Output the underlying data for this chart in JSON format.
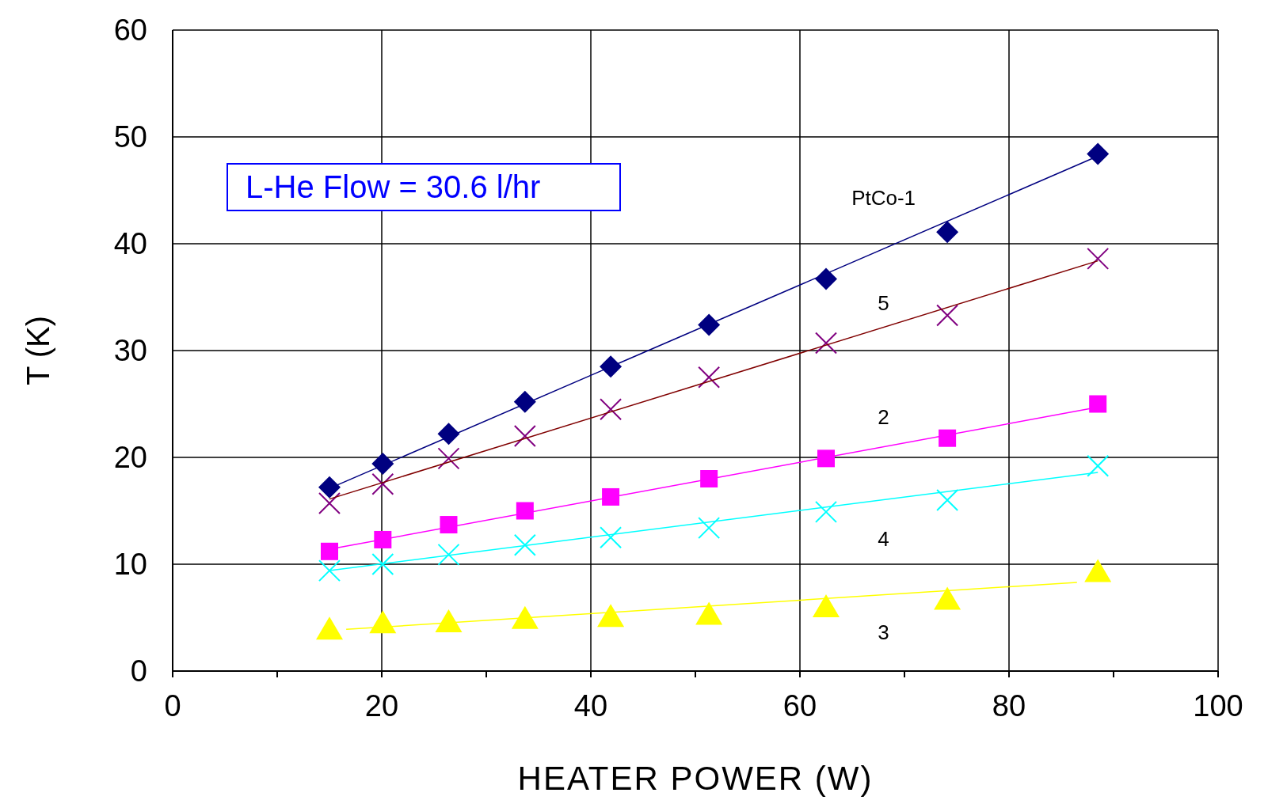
{
  "chart_data": {
    "type": "scatter",
    "xlabel": "HEATER POWER (W)",
    "ylabel": "T (K)",
    "annotations": [
      "L-He Flow = 30.6 l/hr"
    ],
    "x": [
      15.0,
      20.1,
      26.4,
      33.7,
      41.9,
      51.3,
      62.5,
      74.1,
      88.5
    ],
    "series": [
      {
        "name": "PtCo-1",
        "color": "#000080",
        "marker": "diamond",
        "values": [
          17.2,
          19.4,
          22.2,
          25.2,
          28.5,
          32.4,
          36.7,
          41.1,
          48.4
        ]
      },
      {
        "name": "5",
        "color": "#800080",
        "marker": "cross",
        "values": [
          15.7,
          17.5,
          19.9,
          22.0,
          24.5,
          27.5,
          30.7,
          33.3,
          38.6
        ]
      },
      {
        "name": "2",
        "color": "#ff00ff",
        "marker": "square",
        "values": [
          11.2,
          12.3,
          13.7,
          15.0,
          16.3,
          18.0,
          19.9,
          21.8,
          25.0
        ]
      },
      {
        "name": "4",
        "color": "#00ffff",
        "marker": "cross",
        "values": [
          9.4,
          10.0,
          10.9,
          11.8,
          12.5,
          13.4,
          14.9,
          16.0,
          19.2
        ]
      },
      {
        "name": "3",
        "color": "#ffff00",
        "marker": "triangle",
        "values": [
          3.9,
          4.5,
          4.6,
          4.9,
          5.1,
          5.3,
          6.0,
          6.7,
          9.3
        ]
      },
      {
        "type": "line",
        "color": "#000080",
        "x": [
          15.0,
          88.5
        ],
        "values": [
          17.1,
          48.2
        ]
      },
      {
        "type": "line",
        "color": "#800000",
        "x": [
          15.0,
          88.5
        ],
        "values": [
          16.1,
          38.4
        ]
      },
      {
        "type": "line",
        "color": "#ff00ff",
        "x": [
          15.0,
          88.5
        ],
        "values": [
          11.4,
          24.7
        ]
      },
      {
        "type": "line",
        "color": "#00ffff",
        "x": [
          15.0,
          88.5
        ],
        "values": [
          9.4,
          18.6
        ]
      },
      {
        "type": "line",
        "color": "#ffff00",
        "x": [
          16.6,
          86.5
        ],
        "values": [
          3.9,
          8.3
        ]
      }
    ],
    "xlim": [
      0,
      100
    ],
    "ylim": [
      0,
      60
    ],
    "xticks": [
      0,
      {
        "value": 10,
        "label": null
      },
      20,
      {
        "value": 30,
        "label": null
      },
      40,
      {
        "value": 50,
        "label": null
      },
      60,
      {
        "value": 70,
        "label": null
      },
      80,
      {
        "value": 90,
        "label": null
      },
      100
    ],
    "yticks": [
      0,
      10,
      20,
      30,
      40,
      50,
      60
    ],
    "grid": true,
    "legend": false,
    "line_style": "solid"
  }
}
